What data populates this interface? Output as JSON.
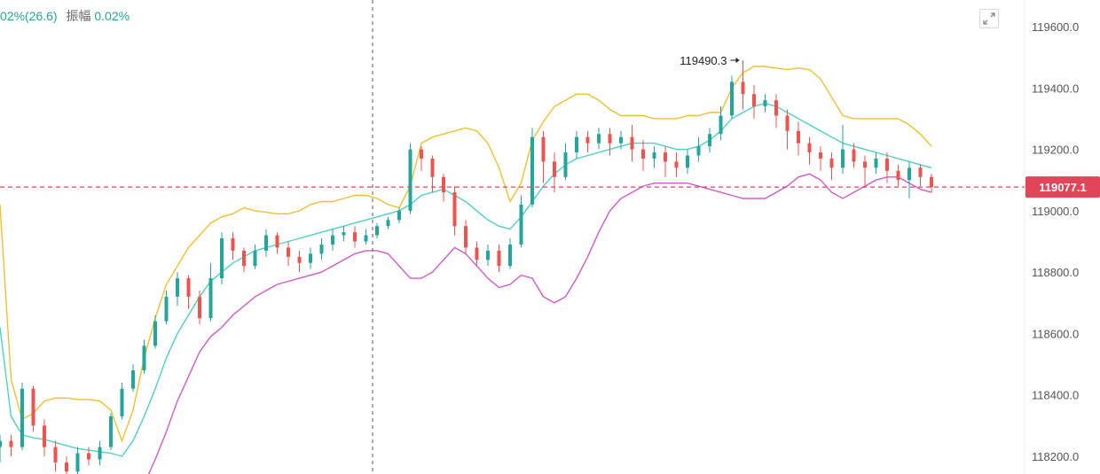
{
  "header": {
    "change_text": "02%(26.6)",
    "amplitude_label": "振幅",
    "amplitude_value": "0.02%"
  },
  "colors": {
    "up": "#26a69a",
    "down": "#ef5350",
    "upper_band": "#f0c030",
    "middle_band": "#4fd1c0",
    "lower_band": "#d05cc8",
    "current_line": "#e0455a"
  },
  "icons": {
    "expand": "expand-icon"
  },
  "chart_data": {
    "type": "candlestick",
    "y_ticks": [
      "119600.0",
      "119400.0",
      "119200.0",
      "119000.0",
      "118800.0",
      "118600.0",
      "118400.0",
      "118200.0"
    ],
    "y_tick_values": [
      119600,
      119400,
      119200,
      119000,
      118800,
      118600,
      118400,
      118200
    ],
    "ylim": [
      118150,
      119700
    ],
    "current_price": 119077.1,
    "current_price_label": "119077.1",
    "peak_label": "119490.3",
    "peak_value": 119490.3,
    "upper_band": [
      119020,
      118450,
      118320,
      118340,
      118380,
      118390,
      118390,
      118385,
      118385,
      118380,
      118350,
      118250,
      118350,
      118520,
      118650,
      118760,
      118820,
      118880,
      118920,
      118960,
      118980,
      118990,
      119010,
      119000,
      118995,
      118990,
      118990,
      119000,
      119020,
      119030,
      119030,
      119040,
      119050,
      119050,
      119040,
      119020,
      119010,
      119080,
      119220,
      119240,
      119250,
      119260,
      119270,
      119260,
      119220,
      119140,
      119030,
      119090,
      119230,
      119290,
      119340,
      119360,
      119380,
      119380,
      119360,
      119330,
      119310,
      119310,
      119310,
      119300,
      119300,
      119300,
      119310,
      119310,
      119320,
      119320,
      119400,
      119450,
      119470,
      119470,
      119465,
      119460,
      119465,
      119460,
      119430,
      119370,
      119310,
      119300,
      119300,
      119300,
      119300,
      119300,
      119280,
      119250,
      119210
    ],
    "middle_band": [
      118620,
      118330,
      118270,
      118260,
      118255,
      118245,
      118235,
      118225,
      118220,
      118215,
      118210,
      118200,
      118250,
      118330,
      118420,
      118520,
      118600,
      118660,
      118720,
      118770,
      118800,
      118830,
      118850,
      118870,
      118880,
      118890,
      118900,
      118910,
      118920,
      118930,
      118940,
      118950,
      118960,
      118970,
      118980,
      118990,
      119000,
      119020,
      119050,
      119060,
      119070,
      119050,
      119030,
      119000,
      118970,
      118950,
      118940,
      118980,
      119030,
      119080,
      119120,
      119150,
      119170,
      119180,
      119190,
      119200,
      119210,
      119220,
      119220,
      119220,
      119210,
      119200,
      119200,
      119210,
      119230,
      119260,
      119300,
      119320,
      119340,
      119350,
      119340,
      119320,
      119300,
      119280,
      119260,
      119240,
      119220,
      119210,
      119200,
      119190,
      119180,
      119170,
      119160,
      119150,
      119140
    ],
    "lower_band": [
      118100,
      118100,
      118100,
      118100,
      118100,
      118100,
      118100,
      118100,
      118100,
      118100,
      118100,
      118100,
      118100,
      118110,
      118190,
      118280,
      118380,
      118460,
      118540,
      118590,
      118620,
      118660,
      118690,
      118720,
      118740,
      118760,
      118770,
      118780,
      118790,
      118800,
      118820,
      118840,
      118860,
      118870,
      118870,
      118860,
      118820,
      118780,
      118780,
      118800,
      118840,
      118880,
      118860,
      118820,
      118780,
      118750,
      118760,
      118790,
      118780,
      118720,
      118700,
      118720,
      118780,
      118850,
      118930,
      119000,
      119040,
      119060,
      119080,
      119090,
      119090,
      119090,
      119090,
      119080,
      119070,
      119060,
      119050,
      119040,
      119040,
      119040,
      119060,
      119080,
      119110,
      119120,
      119100,
      119060,
      119040,
      119060,
      119080,
      119100,
      119110,
      119110,
      119090,
      119070,
      119060
    ],
    "candles": [
      [
        118230,
        118250,
        118180,
        118270
      ],
      [
        118250,
        118230,
        118200,
        118270
      ],
      [
        118230,
        118420,
        118220,
        118440
      ],
      [
        118420,
        118300,
        118280,
        118430
      ],
      [
        118300,
        118230,
        118200,
        118320
      ],
      [
        118230,
        118180,
        118150,
        118250
      ],
      [
        118180,
        118150,
        118120,
        118200
      ],
      [
        118150,
        118210,
        118130,
        118230
      ],
      [
        118210,
        118190,
        118170,
        118230
      ],
      [
        118190,
        118230,
        118170,
        118250
      ],
      [
        118230,
        118330,
        118220,
        118340
      ],
      [
        118330,
        118420,
        118320,
        118440
      ],
      [
        118420,
        118480,
        118410,
        118500
      ],
      [
        118480,
        118560,
        118470,
        118580
      ],
      [
        118560,
        118640,
        118550,
        118660
      ],
      [
        118640,
        118720,
        118630,
        118740
      ],
      [
        118720,
        118780,
        118690,
        118800
      ],
      [
        118780,
        118720,
        118680,
        118790
      ],
      [
        118720,
        118650,
        118630,
        118740
      ],
      [
        118650,
        118780,
        118640,
        118830
      ],
      [
        118780,
        118910,
        118760,
        118930
      ],
      [
        118910,
        118870,
        118840,
        118930
      ],
      [
        118870,
        118820,
        118800,
        118880
      ],
      [
        118820,
        118870,
        118810,
        118890
      ],
      [
        118870,
        118920,
        118850,
        118940
      ],
      [
        118920,
        118880,
        118860,
        118930
      ],
      [
        118880,
        118850,
        118820,
        118900
      ],
      [
        118850,
        118830,
        118800,
        118870
      ],
      [
        118830,
        118860,
        118810,
        118880
      ],
      [
        118860,
        118890,
        118840,
        118910
      ],
      [
        118890,
        118920,
        118870,
        118940
      ],
      [
        118920,
        118930,
        118900,
        118950
      ],
      [
        118930,
        118900,
        118880,
        118950
      ],
      [
        118900,
        118920,
        118890,
        118940
      ],
      [
        118920,
        118950,
        118910,
        118960
      ],
      [
        118950,
        118970,
        118940,
        118980
      ],
      [
        118970,
        119000,
        118960,
        119010
      ],
      [
        119000,
        119200,
        118990,
        119220
      ],
      [
        119200,
        119170,
        119130,
        119210
      ],
      [
        119170,
        119110,
        119060,
        119180
      ],
      [
        119110,
        119060,
        119030,
        119120
      ],
      [
        119060,
        118950,
        118920,
        119080
      ],
      [
        118950,
        118880,
        118860,
        118970
      ],
      [
        118880,
        118840,
        118820,
        118900
      ],
      [
        118840,
        118870,
        118820,
        118890
      ],
      [
        118870,
        118820,
        118800,
        118890
      ],
      [
        118820,
        118890,
        118810,
        118910
      ],
      [
        118890,
        119020,
        118880,
        119050
      ],
      [
        119020,
        119240,
        119010,
        119270
      ],
      [
        119240,
        119160,
        119090,
        119260
      ],
      [
        119160,
        119110,
        119060,
        119190
      ],
      [
        119110,
        119190,
        119100,
        119220
      ],
      [
        119190,
        119240,
        119170,
        119260
      ],
      [
        119240,
        119220,
        119190,
        119260
      ],
      [
        119220,
        119250,
        119200,
        119270
      ],
      [
        119250,
        119220,
        119180,
        119270
      ],
      [
        119220,
        119240,
        119200,
        119260
      ],
      [
        119240,
        119200,
        119160,
        119280
      ],
      [
        119200,
        119170,
        119130,
        119230
      ],
      [
        119170,
        119190,
        119140,
        119210
      ],
      [
        119190,
        119160,
        119110,
        119210
      ],
      [
        119160,
        119140,
        119110,
        119190
      ],
      [
        119140,
        119180,
        119120,
        119200
      ],
      [
        119180,
        119210,
        119160,
        119240
      ],
      [
        119210,
        119250,
        119190,
        119270
      ],
      [
        119250,
        119310,
        119230,
        119340
      ],
      [
        119310,
        119420,
        119300,
        119440
      ],
      [
        119420,
        119380,
        119330,
        119490
      ],
      [
        119380,
        119340,
        119300,
        119410
      ],
      [
        119340,
        119360,
        119320,
        119380
      ],
      [
        119360,
        119310,
        119270,
        119380
      ],
      [
        119310,
        119260,
        119200,
        119330
      ],
      [
        119260,
        119220,
        119180,
        119290
      ],
      [
        119220,
        119190,
        119150,
        119240
      ],
      [
        119190,
        119170,
        119130,
        119210
      ],
      [
        119170,
        119140,
        119100,
        119190
      ],
      [
        119140,
        119200,
        119120,
        119280
      ],
      [
        119200,
        119160,
        119140,
        119220
      ],
      [
        119160,
        119140,
        119080,
        119180
      ],
      [
        119140,
        119170,
        119120,
        119190
      ],
      [
        119170,
        119130,
        119090,
        119190
      ],
      [
        119130,
        119100,
        119080,
        119150
      ],
      [
        119100,
        119140,
        119040,
        119160
      ],
      [
        119140,
        119110,
        119080,
        119150
      ],
      [
        119110,
        119077.1,
        119060,
        119120
      ]
    ]
  }
}
